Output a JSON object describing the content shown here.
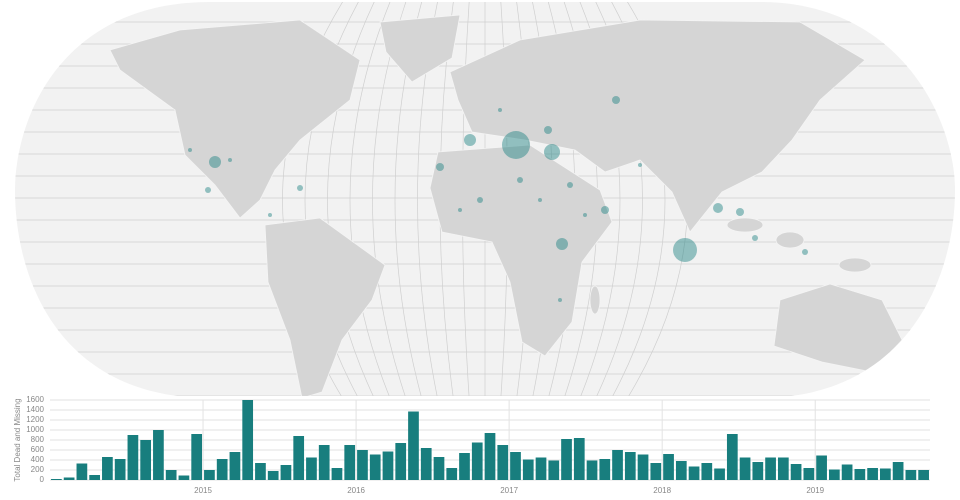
{
  "chart_data": {
    "type": "bar",
    "y_label": "Total Dead and Missing",
    "categories": [
      null,
      null,
      null,
      null,
      null,
      null,
      null,
      null,
      null,
      null,
      null,
      null,
      "2015",
      null,
      null,
      null,
      null,
      null,
      null,
      null,
      null,
      null,
      null,
      null,
      "2016",
      null,
      null,
      null,
      null,
      null,
      null,
      null,
      null,
      null,
      null,
      null,
      "2017",
      null,
      null,
      null,
      null,
      null,
      null,
      null,
      null,
      null,
      null,
      null,
      "2018",
      null,
      null,
      null,
      null,
      null,
      null,
      null,
      null,
      null,
      null,
      null,
      "2019",
      null,
      null,
      null,
      null,
      null,
      null,
      null,
      null
    ],
    "values": [
      20,
      50,
      330,
      100,
      460,
      420,
      900,
      800,
      1000,
      200,
      90,
      920,
      200,
      420,
      560,
      1600,
      340,
      180,
      300,
      880,
      450,
      700,
      240,
      700,
      600,
      510,
      570,
      740,
      1370,
      640,
      460,
      240,
      540,
      750,
      940,
      700,
      560,
      410,
      450,
      390,
      820,
      840,
      390,
      420,
      600,
      560,
      510,
      340,
      520,
      380,
      270,
      340,
      230,
      920,
      450,
      360,
      450,
      450,
      320,
      240,
      490,
      210,
      310,
      220,
      240,
      230,
      360,
      200,
      200
    ],
    "color": "#187e7e",
    "ylim": [
      0,
      1600
    ],
    "yticks": [
      0,
      200,
      400,
      600,
      800,
      1000,
      1200,
      1400,
      1600
    ],
    "grid": true
  }
}
